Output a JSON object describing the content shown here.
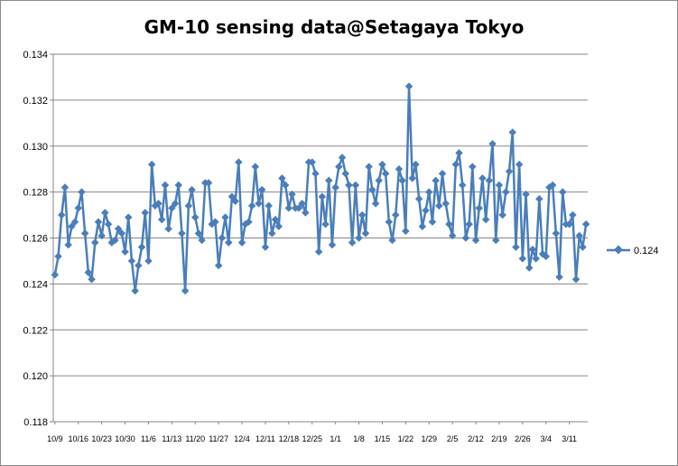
{
  "chart_data": {
    "type": "line",
    "title": "GM-10 sensing data@Setagaya Tokyo",
    "xlabel": "",
    "ylabel": "",
    "ylim": [
      0.118,
      0.134
    ],
    "yticks": [
      "0.118",
      "0.120",
      "0.122",
      "0.124",
      "0.126",
      "0.128",
      "0.130",
      "0.132",
      "0.134"
    ],
    "xtick_labels": [
      "10/9",
      "10/16",
      "10/23",
      "10/30",
      "11/6",
      "11/13",
      "11/20",
      "11/27",
      "12/4",
      "12/11",
      "12/18",
      "12/25",
      "1/1",
      "1/8",
      "1/15",
      "1/22",
      "1/29",
      "2/5",
      "2/12",
      "2/19",
      "2/26",
      "3/4",
      "3/11"
    ],
    "grid": "horizontal",
    "legend_position": "right",
    "colors": {
      "series": "#4a7ebb",
      "grid": "#868686"
    },
    "series": [
      {
        "name": "0.124",
        "x_start": "10/9",
        "values": [
          0.1244,
          0.1252,
          0.127,
          0.1282,
          0.1257,
          0.1265,
          0.1267,
          0.1273,
          0.128,
          0.1262,
          0.1245,
          0.1242,
          0.1258,
          0.1267,
          0.1261,
          0.1271,
          0.1266,
          0.1258,
          0.1259,
          0.1264,
          0.1262,
          0.1254,
          0.1269,
          0.125,
          0.1237,
          0.1248,
          0.1256,
          0.1271,
          0.125,
          0.1292,
          0.1274,
          0.1275,
          0.1268,
          0.1283,
          0.1264,
          0.1273,
          0.1275,
          0.1283,
          0.1262,
          0.1237,
          0.1274,
          0.1281,
          0.1269,
          0.1262,
          0.1259,
          0.1284,
          0.1284,
          0.1266,
          0.1267,
          0.1248,
          0.126,
          0.1269,
          0.1258,
          0.1278,
          0.1276,
          0.1293,
          0.1258,
          0.1266,
          0.1267,
          0.1274,
          0.1291,
          0.1275,
          0.1281,
          0.1256,
          0.1274,
          0.1262,
          0.1268,
          0.1265,
          0.1286,
          0.1283,
          0.1273,
          0.1279,
          0.1273,
          0.1273,
          0.1275,
          0.1271,
          0.1293,
          0.1293,
          0.1288,
          0.1254,
          0.1278,
          0.1266,
          0.1285,
          0.1257,
          0.1282,
          0.1291,
          0.1295,
          0.1288,
          0.1283,
          0.1258,
          0.1283,
          0.126,
          0.127,
          0.1262,
          0.1291,
          0.1281,
          0.1275,
          0.1285,
          0.1292,
          0.1288,
          0.1267,
          0.1259,
          0.127,
          0.129,
          0.1285,
          0.1263,
          0.1326,
          0.1286,
          0.1292,
          0.1277,
          0.1265,
          0.1272,
          0.128,
          0.1267,
          0.1285,
          0.1274,
          0.1288,
          0.1275,
          0.1266,
          0.1261,
          0.1292,
          0.1297,
          0.1283,
          0.126,
          0.1266,
          0.1291,
          0.1259,
          0.1273,
          0.1286,
          0.1268,
          0.1285,
          0.1301,
          0.1259,
          0.1283,
          0.127,
          0.128,
          0.1289,
          0.1306,
          0.1256,
          0.1292,
          0.1251,
          0.1279,
          0.1247,
          0.1255,
          0.1251,
          0.1277,
          0.1253,
          0.1252,
          0.1282,
          0.1283,
          0.1262,
          0.1243,
          0.128,
          0.1266,
          0.1266,
          0.127,
          0.1242,
          0.1261,
          0.1256,
          0.1266
        ]
      }
    ]
  }
}
